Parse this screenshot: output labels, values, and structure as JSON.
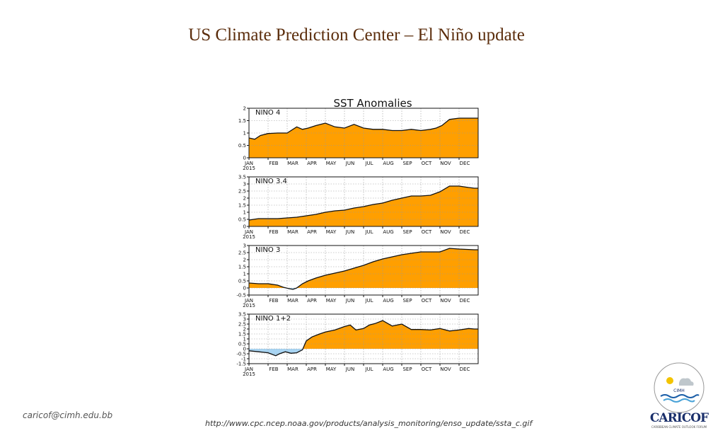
{
  "slide": {
    "title": "US Climate Prediction Center – El Niño update",
    "email": "caricof@cimh.edu.bb",
    "url": "http://www.cpc.ncep.noaa.gov/products/analysis_monitoring/enso_update/ssta_c.gif",
    "logo": {
      "ring_text": "CIMH",
      "brand": "CARICOF",
      "tagline": "CARIBBEAN CLIMATE OUTLOOK FORUM"
    }
  },
  "colors": {
    "positive": "#ff9f00",
    "negative": "#a8d4f2",
    "line": "#111111",
    "title": "#5b2d0c"
  },
  "chart_data": {
    "type": "area",
    "title": "SST Anomalies",
    "year_label": "2015",
    "months": [
      "JAN",
      "FEB",
      "MAR",
      "APR",
      "MAY",
      "JUN",
      "JUL",
      "AUG",
      "SEP",
      "OCT",
      "NOV",
      "DEC"
    ],
    "panels": [
      {
        "name": "NINO 4",
        "ylim": [
          0,
          2
        ],
        "yticks": [
          0,
          0.5,
          1,
          1.5,
          2
        ],
        "yticklabels": [
          "0",
          "0.5",
          "1",
          "1.5",
          "2"
        ],
        "x": [
          0,
          0.3,
          0.6,
          1,
          1.5,
          2,
          2.5,
          2.8,
          3.1,
          3.5,
          4,
          4.5,
          5,
          5.5,
          6,
          6.5,
          7,
          7.5,
          8,
          8.5,
          9,
          9.5,
          9.8,
          10.1,
          10.5,
          11,
          11.5,
          11.8
        ],
        "values": [
          0.8,
          0.75,
          0.9,
          0.98,
          1.0,
          1.0,
          1.25,
          1.15,
          1.2,
          1.3,
          1.4,
          1.25,
          1.2,
          1.35,
          1.2,
          1.15,
          1.15,
          1.1,
          1.1,
          1.15,
          1.1,
          1.15,
          1.2,
          1.3,
          1.55,
          1.6,
          1.6,
          1.6
        ]
      },
      {
        "name": "NINO 3.4",
        "ylim": [
          0,
          3.5
        ],
        "yticks": [
          0,
          0.5,
          1,
          1.5,
          2,
          2.5,
          3,
          3.5
        ],
        "yticklabels": [
          "0",
          "0.5",
          "1",
          "1.5",
          "2",
          "2.5",
          "3",
          "3.5"
        ],
        "x": [
          0,
          0.5,
          1,
          1.5,
          2,
          2.5,
          3,
          3.5,
          4,
          4.5,
          5,
          5.5,
          6,
          6.5,
          7,
          7.5,
          8,
          8.5,
          9,
          9.5,
          10,
          10.5,
          11,
          11.5,
          11.8
        ],
        "values": [
          0.45,
          0.55,
          0.55,
          0.55,
          0.6,
          0.65,
          0.75,
          0.85,
          1.0,
          1.1,
          1.15,
          1.3,
          1.4,
          1.55,
          1.65,
          1.85,
          2.0,
          2.15,
          2.15,
          2.2,
          2.45,
          2.85,
          2.85,
          2.75,
          2.7
        ]
      },
      {
        "name": "NINO 3",
        "ylim": [
          -0.5,
          3
        ],
        "yticks": [
          -0.5,
          0,
          0.5,
          1,
          1.5,
          2,
          2.5,
          3
        ],
        "yticklabels": [
          "-0.5",
          "0",
          "0.5",
          "1",
          "1.5",
          "2",
          "2.5",
          "3"
        ],
        "x": [
          0,
          0.5,
          1,
          1.5,
          1.8,
          2.1,
          2.3,
          2.5,
          2.8,
          3.1,
          3.5,
          4,
          4.5,
          5,
          5.5,
          6,
          6.5,
          7,
          7.5,
          8,
          8.5,
          9,
          9.5,
          10,
          10.5,
          11,
          11.8
        ],
        "values": [
          0.35,
          0.3,
          0.3,
          0.2,
          0.05,
          -0.05,
          -0.1,
          0.0,
          0.3,
          0.5,
          0.7,
          0.9,
          1.05,
          1.2,
          1.4,
          1.6,
          1.85,
          2.05,
          2.2,
          2.35,
          2.45,
          2.55,
          2.55,
          2.55,
          2.8,
          2.75,
          2.7
        ]
      },
      {
        "name": "NINO 1+2",
        "ylim": [
          -1.5,
          3.5
        ],
        "yticks": [
          -1.5,
          -1,
          -0.5,
          0,
          0.5,
          1,
          1.5,
          2,
          2.5,
          3,
          3.5
        ],
        "yticklabels": [
          "-1.5",
          "-1",
          "-0.5",
          "0",
          "0.5",
          "1",
          "1.5",
          "2",
          "2.5",
          "3",
          "3.5"
        ],
        "x": [
          0,
          0.5,
          1,
          1.4,
          1.6,
          1.9,
          2.2,
          2.5,
          2.8,
          3,
          3.3,
          3.7,
          4,
          4.5,
          5,
          5.3,
          5.6,
          6,
          6.3,
          6.6,
          7,
          7.5,
          8,
          8.5,
          9,
          9.5,
          10,
          10.5,
          11,
          11.5,
          11.8
        ],
        "values": [
          -0.2,
          -0.3,
          -0.4,
          -0.7,
          -0.5,
          -0.3,
          -0.45,
          -0.4,
          -0.1,
          0.8,
          1.2,
          1.5,
          1.7,
          1.9,
          2.25,
          2.4,
          1.9,
          2.05,
          2.4,
          2.55,
          2.85,
          2.3,
          2.5,
          1.95,
          1.95,
          1.9,
          2.05,
          1.8,
          1.9,
          2.05,
          2.0
        ]
      }
    ]
  }
}
